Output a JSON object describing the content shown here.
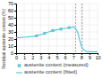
{
  "chart_data": {
    "type": "line",
    "ylabel": "Residual austenite content (%)",
    "series": [
      {
        "name": "austenite content (measured)",
        "type": "scatter",
        "marker": "square",
        "color": "#5bc8d8",
        "x": [
          2.5,
          3.5,
          4.5,
          5.5,
          6.5
        ],
        "values": [
          24.5,
          28,
          32,
          34,
          36
        ]
      },
      {
        "name": "austenite content (fitted)",
        "type": "line",
        "color": "#5bc8d8",
        "x": [
          0.0,
          0.5,
          1.0,
          1.5,
          2.0,
          2.5,
          3.0,
          3.5,
          4.0,
          4.5,
          5.0,
          5.5,
          6.0,
          6.5,
          7.0,
          7.2,
          7.4,
          7.6,
          7.8,
          8.0,
          8.2,
          8.4,
          8.6,
          8.8,
          9.0,
          9.2,
          9.5,
          10.0
        ],
        "values": [
          22,
          22,
          22.5,
          23,
          23.5,
          24.5,
          26,
          28,
          30,
          32,
          33,
          34,
          35,
          36,
          37,
          36,
          33,
          28,
          18,
          10,
          6,
          4,
          3,
          2,
          2,
          2,
          2,
          2
        ]
      }
    ],
    "vlines": [
      7.3,
      8.1
    ],
    "xlim": [
      0,
      10
    ],
    "ylim": [
      0,
      70
    ],
    "xticks": [
      0,
      1,
      2,
      3,
      4,
      5,
      6,
      7,
      8,
      9,
      10
    ],
    "yticks": [
      0,
      10,
      20,
      30,
      40,
      50,
      60,
      70
    ],
    "grid": true,
    "legend": "bottom"
  }
}
